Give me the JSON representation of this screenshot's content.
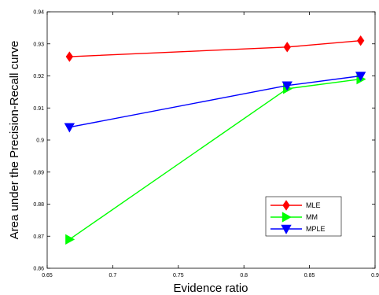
{
  "chart_data": {
    "type": "line",
    "xlabel": "Evidence ratio",
    "ylabel": "Area under the Precision-Recall curve",
    "xlim": [
      0.65,
      0.9
    ],
    "ylim": [
      0.86,
      0.94
    ],
    "xticks": [
      "0.65",
      "0.7",
      "0.75",
      "0.8",
      "0.85",
      "0.9"
    ],
    "yticks": [
      "0.86",
      "0.87",
      "0.88",
      "0.89",
      "0.9",
      "0.91",
      "0.92",
      "0.93",
      "0.94"
    ],
    "x": [
      0.667,
      0.833,
      0.889
    ],
    "grid": false,
    "legend_position": "bottom-right",
    "series": [
      {
        "name": "MLE",
        "values": [
          0.926,
          0.929,
          0.931
        ],
        "color": "#ff0000",
        "marker": "diamond"
      },
      {
        "name": "MM",
        "values": [
          0.869,
          0.916,
          0.919
        ],
        "color": "#00ff00",
        "marker": "triangle-right"
      },
      {
        "name": "MPLE",
        "values": [
          0.904,
          0.917,
          0.92
        ],
        "color": "#0000ff",
        "marker": "triangle-down"
      }
    ]
  }
}
